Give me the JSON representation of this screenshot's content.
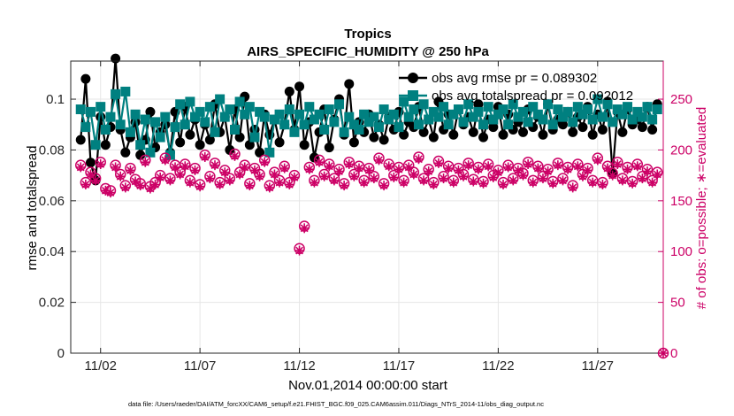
{
  "chart_data": {
    "type": "line",
    "title": "Tropics",
    "subtitle": "AIRS_SPECIFIC_HUMIDITY @ 250 hPa",
    "xlabel": "Nov.01,2014 00:00:00 start",
    "ylabel": "rmse and totalspread",
    "y2label": "# of obs: o=possible; ∗=evaluated",
    "xlim": [
      0.5,
      30.3
    ],
    "ylim": [
      0,
      0.115
    ],
    "y2lim": [
      0,
      287.5
    ],
    "x_ticks": [
      2,
      7,
      12,
      17,
      22,
      27
    ],
    "x_tick_labels": [
      "11/02",
      "11/07",
      "11/12",
      "11/17",
      "11/22",
      "11/27"
    ],
    "y_ticks": [
      0,
      0.02,
      0.04,
      0.06,
      0.08,
      0.1
    ],
    "y_tick_labels": [
      "0",
      "0.02",
      "0.04",
      "0.06",
      "0.08",
      "0.1"
    ],
    "y2_ticks": [
      0,
      50,
      100,
      150,
      200,
      250
    ],
    "y2_tick_labels": [
      "0",
      "50",
      "100",
      "150",
      "200",
      "250"
    ],
    "grid": true,
    "legend_position": "top-right",
    "colors": {
      "rmse": "#000000",
      "spread": "#008080",
      "obs": "#cc0066",
      "axis2": "#cc0066"
    },
    "series": [
      {
        "name": "obs avg rmse pr = 0.089302",
        "axis": "left",
        "marker": "circle",
        "color": "#000000",
        "x": [
          1,
          1.25,
          1.5,
          1.75,
          2,
          2.25,
          2.5,
          2.75,
          3,
          3.25,
          3.5,
          3.75,
          4,
          4.25,
          4.5,
          4.75,
          5,
          5.25,
          5.5,
          5.75,
          6,
          6.25,
          6.5,
          6.75,
          7,
          7.25,
          7.5,
          7.75,
          8,
          8.25,
          8.5,
          8.75,
          9,
          9.25,
          9.5,
          9.75,
          10,
          10.25,
          10.5,
          10.75,
          11,
          11.25,
          11.5,
          11.75,
          12,
          12.25,
          12.5,
          12.75,
          13,
          13.25,
          13.5,
          13.75,
          14,
          14.25,
          14.5,
          14.75,
          15,
          15.25,
          15.5,
          15.75,
          16,
          16.25,
          16.5,
          16.75,
          17,
          17.25,
          17.5,
          17.75,
          18,
          18.25,
          18.5,
          18.75,
          19,
          19.25,
          19.5,
          19.75,
          20,
          20.25,
          20.5,
          20.75,
          21,
          21.25,
          21.5,
          21.75,
          22,
          22.25,
          22.5,
          22.75,
          23,
          23.25,
          23.5,
          23.75,
          24,
          24.25,
          24.5,
          24.75,
          25,
          25.25,
          25.5,
          25.75,
          26,
          26.25,
          26.5,
          26.75,
          27,
          27.25,
          27.5,
          27.75,
          28,
          28.25,
          28.5,
          28.75,
          29,
          29.25,
          29.5,
          29.75,
          30
        ],
        "values": [
          0.084,
          0.108,
          0.075,
          0.068,
          0.093,
          0.082,
          0.089,
          0.116,
          0.088,
          0.079,
          0.085,
          0.091,
          0.078,
          0.084,
          0.095,
          0.081,
          0.087,
          0.09,
          0.079,
          0.095,
          0.083,
          0.097,
          0.086,
          0.092,
          0.082,
          0.09,
          0.084,
          0.098,
          0.087,
          0.093,
          0.08,
          0.096,
          0.085,
          0.101,
          0.082,
          0.088,
          0.079,
          0.094,
          0.086,
          0.092,
          0.083,
          0.09,
          0.103,
          0.088,
          0.105,
          0.082,
          0.091,
          0.077,
          0.087,
          0.096,
          0.081,
          0.092,
          0.1,
          0.086,
          0.106,
          0.083,
          0.091,
          0.087,
          0.094,
          0.085,
          0.09,
          0.084,
          0.093,
          0.088,
          0.095,
          0.086,
          0.091,
          0.089,
          0.097,
          0.087,
          0.092,
          0.085,
          0.099,
          0.088,
          0.094,
          0.086,
          0.096,
          0.09,
          0.093,
          0.087,
          0.098,
          0.085,
          0.092,
          0.089,
          0.097,
          0.086,
          0.094,
          0.088,
          0.091,
          0.087,
          0.096,
          0.089,
          0.093,
          0.086,
          0.098,
          0.088,
          0.092,
          0.09,
          0.095,
          0.087,
          0.093,
          0.089,
          0.097,
          0.086,
          0.094,
          0.088,
          0.099,
          0.071,
          0.095,
          0.087,
          0.096,
          0.09,
          0.092,
          0.089,
          0.097,
          0.088,
          0.098
        ]
      },
      {
        "name": "obs avg totalspread pr = 0.092012",
        "axis": "left",
        "marker": "square",
        "color": "#008080",
        "x": [
          1,
          1.25,
          1.5,
          1.75,
          2,
          2.25,
          2.5,
          2.75,
          3,
          3.25,
          3.5,
          3.75,
          4,
          4.25,
          4.5,
          4.75,
          5,
          5.25,
          5.5,
          5.75,
          6,
          6.25,
          6.5,
          6.75,
          7,
          7.25,
          7.5,
          7.75,
          8,
          8.25,
          8.5,
          8.75,
          9,
          9.25,
          9.5,
          9.75,
          10,
          10.25,
          10.5,
          10.75,
          11,
          11.25,
          11.5,
          11.75,
          12,
          12.25,
          12.5,
          12.75,
          13,
          13.25,
          13.5,
          13.75,
          14,
          14.25,
          14.5,
          14.75,
          15,
          15.25,
          15.5,
          15.75,
          16,
          16.25,
          16.5,
          16.75,
          17,
          17.25,
          17.5,
          17.75,
          18,
          18.25,
          18.5,
          18.75,
          19,
          19.25,
          19.5,
          19.75,
          20,
          20.25,
          20.5,
          20.75,
          21,
          21.25,
          21.5,
          21.75,
          22,
          22.25,
          22.5,
          22.75,
          23,
          23.25,
          23.5,
          23.75,
          24,
          24.25,
          24.5,
          24.75,
          25,
          25.25,
          25.5,
          25.75,
          26,
          26.25,
          26.5,
          26.75,
          27,
          27.25,
          27.5,
          27.75,
          28,
          28.25,
          28.5,
          28.75,
          29,
          29.25,
          29.5,
          29.75,
          30
        ],
        "values": [
          0.096,
          0.089,
          0.095,
          0.082,
          0.097,
          0.088,
          0.093,
          0.102,
          0.09,
          0.103,
          0.087,
          0.094,
          0.082,
          0.092,
          0.079,
          0.091,
          0.085,
          0.093,
          0.078,
          0.089,
          0.098,
          0.09,
          0.099,
          0.093,
          0.095,
          0.091,
          0.097,
          0.087,
          0.1,
          0.093,
          0.096,
          0.088,
          0.099,
          0.094,
          0.097,
          0.085,
          0.095,
          0.093,
          0.079,
          0.092,
          0.094,
          0.09,
          0.096,
          0.087,
          0.094,
          0.09,
          0.097,
          0.092,
          0.094,
          0.088,
          0.096,
          0.091,
          0.098,
          0.087,
          0.093,
          0.09,
          0.088,
          0.094,
          0.091,
          0.093,
          0.089,
          0.096,
          0.092,
          0.094,
          0.089,
          0.099,
          0.093,
          0.096,
          0.09,
          0.098,
          0.092,
          0.095,
          0.093,
          0.097,
          0.09,
          0.094,
          0.096,
          0.091,
          0.098,
          0.093,
          0.095,
          0.09,
          0.097,
          0.092,
          0.094,
          0.096,
          0.09,
          0.098,
          0.093,
          0.095,
          0.091,
          0.097,
          0.094,
          0.092,
          0.098,
          0.09,
          0.096,
          0.093,
          0.095,
          0.091,
          0.097,
          0.094,
          0.096,
          0.092,
          0.1,
          0.093,
          0.098,
          0.091,
          0.096,
          0.094,
          0.097,
          0.092,
          0.095,
          0.093,
          0.097,
          0.092,
          0.096
        ]
      },
      {
        "name": "possible",
        "axis": "right",
        "marker": "open-circle",
        "color": "#cc0066",
        "x": [
          1,
          1.25,
          1.5,
          1.75,
          2,
          2.25,
          2.5,
          2.75,
          3,
          3.25,
          3.5,
          3.75,
          4,
          4.25,
          4.5,
          4.75,
          5,
          5.25,
          5.5,
          5.75,
          6,
          6.25,
          6.5,
          6.75,
          7,
          7.25,
          7.5,
          7.75,
          8,
          8.25,
          8.5,
          8.75,
          9,
          9.25,
          9.5,
          9.75,
          10,
          10.25,
          10.5,
          10.75,
          11,
          11.25,
          11.5,
          11.75,
          12,
          12.25,
          12.5,
          12.75,
          13,
          13.25,
          13.5,
          13.75,
          14,
          14.25,
          14.5,
          14.75,
          15,
          15.25,
          15.5,
          15.75,
          16,
          16.25,
          16.5,
          16.75,
          17,
          17.25,
          17.5,
          17.75,
          18,
          18.25,
          18.5,
          18.75,
          19,
          19.25,
          19.5,
          19.75,
          20,
          20.25,
          20.5,
          20.75,
          21,
          21.25,
          21.5,
          21.75,
          22,
          22.25,
          22.5,
          22.75,
          23,
          23.25,
          23.5,
          23.75,
          24,
          24.25,
          24.5,
          24.75,
          25,
          25.25,
          25.5,
          25.75,
          26,
          26.25,
          26.5,
          26.75,
          27,
          27.25,
          27.5,
          27.75,
          28,
          28.25,
          28.5,
          28.75,
          29,
          29.25,
          29.5,
          29.75,
          30
        ],
        "values": [
          185,
          168,
          178,
          172,
          188,
          162,
          160,
          185,
          176,
          165,
          182,
          171,
          167,
          190,
          164,
          168,
          175,
          192,
          172,
          185,
          178,
          186,
          170,
          182,
          166,
          195,
          174,
          187,
          168,
          180,
          172,
          196,
          178,
          185,
          167,
          182,
          176,
          190,
          165,
          178,
          170,
          184,
          168,
          175,
          103,
          125,
          183,
          170,
          190,
          176,
          186,
          172,
          181,
          167,
          188,
          176,
          184,
          170,
          182,
          174,
          192,
          167,
          186,
          175,
          183,
          170,
          185,
          178,
          193,
          172,
          181,
          168,
          189,
          174,
          184,
          170,
          182,
          176,
          187,
          171,
          183,
          169,
          186,
          175,
          180,
          168,
          185,
          172,
          182,
          177,
          188,
          170,
          184,
          174,
          181,
          169,
          187,
          172,
          183,
          165,
          186,
          176,
          182,
          170,
          192,
          168,
          184,
          177,
          188,
          172,
          183,
          169,
          186,
          174,
          181,
          170,
          178
        ]
      },
      {
        "name": "evaluated",
        "axis": "right",
        "marker": "asterisk",
        "color": "#cc0066",
        "x": [
          1,
          1.25,
          1.5,
          1.75,
          2,
          2.25,
          2.5,
          2.75,
          3,
          3.25,
          3.5,
          3.75,
          4,
          4.25,
          4.5,
          4.75,
          5,
          5.25,
          5.5,
          5.75,
          6,
          6.25,
          6.5,
          6.75,
          7,
          7.25,
          7.5,
          7.75,
          8,
          8.25,
          8.5,
          8.75,
          9,
          9.25,
          9.5,
          9.75,
          10,
          10.25,
          10.5,
          10.75,
          11,
          11.25,
          11.5,
          11.75,
          12,
          12.25,
          12.5,
          12.75,
          13,
          13.25,
          13.5,
          13.75,
          14,
          14.25,
          14.5,
          14.75,
          15,
          15.25,
          15.5,
          15.75,
          16,
          16.25,
          16.5,
          16.75,
          17,
          17.25,
          17.5,
          17.75,
          18,
          18.25,
          18.5,
          18.75,
          19,
          19.25,
          19.5,
          19.75,
          20,
          20.25,
          20.5,
          20.75,
          21,
          21.25,
          21.5,
          21.75,
          22,
          22.25,
          22.5,
          22.75,
          23,
          23.25,
          23.5,
          23.75,
          24,
          24.25,
          24.5,
          24.75,
          25,
          25.25,
          25.5,
          25.75,
          26,
          26.25,
          26.5,
          26.75,
          27,
          27.25,
          27.5,
          27.75,
          28,
          28.25,
          28.5,
          28.75,
          29,
          29.25,
          29.5,
          29.75,
          30
        ],
        "values": [
          183,
          166,
          176,
          170,
          186,
          160,
          158,
          183,
          174,
          163,
          180,
          169,
          165,
          188,
          162,
          166,
          173,
          190,
          170,
          183,
          176,
          184,
          168,
          180,
          164,
          193,
          172,
          185,
          166,
          178,
          170,
          194,
          176,
          183,
          165,
          180,
          174,
          188,
          163,
          176,
          168,
          182,
          166,
          173,
          101,
          123,
          181,
          168,
          188,
          174,
          184,
          170,
          179,
          165,
          186,
          174,
          182,
          168,
          180,
          172,
          190,
          165,
          184,
          173,
          181,
          168,
          183,
          176,
          191,
          170,
          179,
          166,
          187,
          172,
          182,
          168,
          180,
          174,
          185,
          169,
          181,
          167,
          184,
          173,
          178,
          166,
          183,
          170,
          180,
          175,
          186,
          168,
          182,
          172,
          179,
          167,
          185,
          170,
          181,
          163,
          184,
          174,
          180,
          168,
          190,
          166,
          182,
          175,
          186,
          170,
          181,
          167,
          184,
          172,
          179,
          168,
          176
        ]
      }
    ],
    "footer": "data file: /Users/raeder/DAI/ATM_forcXX/CAM6_setup/f.e21.FHIST_BGC.f09_025.CAM6assim.011/Diags_NTrS_2014-11/obs_diag_output.nc"
  }
}
